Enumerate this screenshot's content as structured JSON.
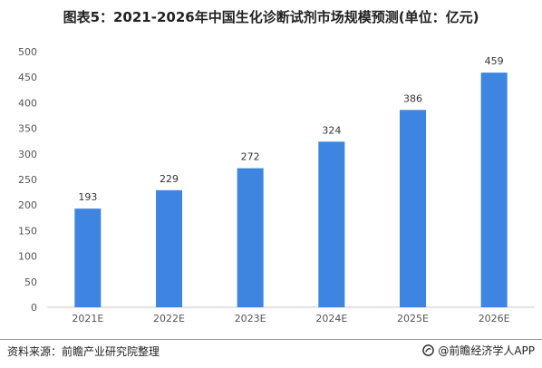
{
  "title": "图表5：2021-2026年中国生化诊断试剂市场规模预测(单位：亿元)",
  "footer": {
    "source": "资料来源：前瞻产业研究院整理",
    "brand": "@前瞻经济学人APP"
  },
  "colors": {
    "bar": "#3d85e0",
    "axis": "#c8c8c8"
  },
  "chart_data": {
    "type": "bar",
    "categories": [
      "2021E",
      "2022E",
      "2023E",
      "2024E",
      "2025E",
      "2026E"
    ],
    "values": [
      193,
      229,
      272,
      324,
      386,
      459
    ],
    "title": "图表5：2021-2026年中国生化诊断试剂市场规模预测(单位：亿元)",
    "xlabel": "",
    "ylabel": "",
    "ylim": [
      0,
      500
    ],
    "yticks": [
      0,
      50,
      100,
      150,
      200,
      250,
      300,
      350,
      400,
      450,
      500
    ],
    "grid": false,
    "legend": "none"
  }
}
